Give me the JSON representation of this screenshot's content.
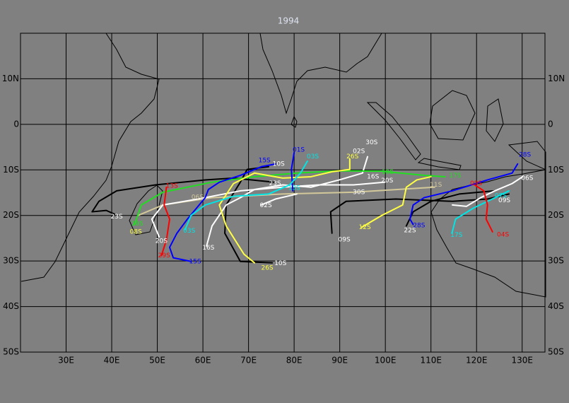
{
  "title": "1994",
  "map": {
    "lonlim": [
      20,
      135
    ],
    "latlim": [
      -50,
      20
    ],
    "lon_ticks": [
      {
        "value": 30,
        "label": "30E"
      },
      {
        "value": 40,
        "label": "40E"
      },
      {
        "value": 50,
        "label": "50E"
      },
      {
        "value": 60,
        "label": "60E"
      },
      {
        "value": 70,
        "label": "70E"
      },
      {
        "value": 80,
        "label": "80E"
      },
      {
        "value": 90,
        "label": "90E"
      },
      {
        "value": 100,
        "label": "100E"
      },
      {
        "value": 110,
        "label": "110E"
      },
      {
        "value": 120,
        "label": "120E"
      },
      {
        "value": 130,
        "label": "130E"
      }
    ],
    "lat_ticks": [
      {
        "value": 10,
        "label": "10N"
      },
      0,
      {
        "value": -10,
        "label": "10S"
      },
      {
        "value": -20,
        "label": "20S"
      },
      {
        "value": -30,
        "label": "30S"
      },
      {
        "value": -40,
        "label": "40S"
      },
      {
        "value": -50,
        "label": "50S"
      }
    ],
    "tracks": [
      {
        "color": "#000000",
        "lon": [
          75.6,
          66.7,
          60.5,
          49.6,
          41.1,
          37.2,
          35.7,
          38.8,
          40.6
        ],
        "lat": [
          -12.7,
          -11.8,
          -12.2,
          -13.3,
          -14.6,
          -16.9,
          -19.2,
          -18.9,
          -19.7
        ]
      },
      {
        "color": "#000000",
        "lon": [
          74.4,
          69.7,
          68.2,
          65.1,
          64.8,
          68.2,
          75.2
        ],
        "lat": [
          -9.3,
          -9.9,
          -12.7,
          -17.7,
          -23.9,
          -30.1,
          -30.4
        ]
      },
      {
        "color": "#000000",
        "lon": [
          88.3,
          88.0,
          91.4,
          102.3,
          114.7,
          122.4,
          127.1
        ],
        "lat": [
          -23.9,
          -19.2,
          -16.9,
          -16.4,
          -16.9,
          -16.4,
          -15.3
        ]
      },
      {
        "color": "#000000",
        "lon": [
          104.6,
          106.1,
          110.0,
          116.2,
          124.0
        ],
        "lat": [
          -22.3,
          -19.2,
          -16.9,
          -15.3,
          -14.6
        ]
      },
      {
        "color": "#d2c89a",
        "lon": [
          110.8,
          93.0,
          77.5,
          62.0,
          51.2,
          45.8
        ],
        "lat": [
          -13.8,
          -14.9,
          -15.3,
          -16.1,
          -17.7,
          -20.0
        ]
      },
      {
        "color": "#ffffff",
        "lon": [
          96.1,
          95.0,
          89.9,
          83.7,
          77.5,
          71.3,
          68.2,
          65.1,
          62.0,
          60.8
        ],
        "lat": [
          -7.1,
          -10.7,
          -12.2,
          -13.8,
          -13.3,
          -14.3,
          -16.1,
          -17.7,
          -22.3,
          -26.7
        ]
      },
      {
        "color": "#ffffff",
        "lon": [
          99.9,
          93.0,
          85.3,
          77.5,
          68.2,
          58.9,
          51.2,
          48.8,
          50.4
        ],
        "lat": [
          -12.7,
          -13.3,
          -13.3,
          -13.8,
          -14.6,
          -16.4,
          -17.7,
          -20.8,
          -24.7
        ]
      },
      {
        "color": "#ffffff",
        "lon": [
          130.1,
          127.8,
          124.0,
          120.9,
          117.8,
          114.7
        ],
        "lat": [
          -11.5,
          -13.0,
          -14.6,
          -16.1,
          -18.0,
          -17.7
        ]
      },
      {
        "color": "#ffffff",
        "lon": [
          72.8,
          75.9,
          80.6
        ],
        "lat": [
          -17.7,
          -16.4,
          -15.3
        ]
      },
      {
        "color": "#22dd22",
        "lon": [
          45.0,
          46.5,
          51.2,
          62.0,
          71.3,
          80.6,
          89.9,
          99.2,
          108.5,
          113.1
        ],
        "lat": [
          -22.0,
          -17.7,
          -14.9,
          -12.7,
          -11.5,
          -10.7,
          -10.2,
          -10.3,
          -11.2,
          -11.5
        ]
      },
      {
        "color": "#ffff44",
        "lon": [
          92.2,
          92.2,
          88.3,
          83.7,
          77.5,
          71.3,
          66.7,
          63.6,
          65.1,
          69.0,
          71.3
        ],
        "lat": [
          -7.6,
          -9.9,
          -10.4,
          -11.5,
          -11.8,
          -10.7,
          -13.0,
          -17.7,
          -22.3,
          -28.5,
          -30.4
        ]
      },
      {
        "color": "#ffff44",
        "lon": [
          94.8,
          99.2,
          103.8,
          104.6,
          106.9,
          110.0
        ],
        "lat": [
          -22.6,
          -20.0,
          -17.7,
          -13.8,
          -12.2,
          -11.5
        ]
      },
      {
        "color": "#0000ff",
        "lon": [
          75.9,
          72.8,
          68.2,
          63.6,
          61.2,
          60.5,
          56.6,
          54.3,
          52.7,
          53.5,
          57.4
        ],
        "lat": [
          -8.7,
          -9.3,
          -11.2,
          -12.7,
          -14.3,
          -16.1,
          -20.8,
          -23.9,
          -27.0,
          -29.3,
          -30.1
        ]
      },
      {
        "color": "#0000ff",
        "lon": [
          80.0,
          79.4,
          79.7
        ],
        "lat": [
          -6.2,
          -9.9,
          -14.6
        ]
      },
      {
        "color": "#0000ff",
        "lon": [
          129.0,
          127.8,
          122.4,
          114.7,
          108.5,
          106.1,
          105.4,
          106.1
        ],
        "lat": [
          -8.7,
          -10.7,
          -12.2,
          -14.6,
          -16.1,
          -17.7,
          -20.8,
          -22.0
        ]
      },
      {
        "color": "#00e5e5",
        "lon": [
          82.9,
          81.4,
          79.0,
          74.4,
          66.7,
          60.5,
          57.4,
          56.1
        ],
        "lat": [
          -8.1,
          -10.7,
          -13.3,
          -15.3,
          -15.8,
          -17.7,
          -20.0,
          -23.1
        ]
      },
      {
        "color": "#00e5e5",
        "lon": [
          114.6,
          115.4,
          119.3,
          122.4,
          127.1
        ],
        "lat": [
          -23.9,
          -20.8,
          -18.4,
          -16.9,
          -14.6
        ]
      },
      {
        "color": "#ff0000",
        "lon": [
          52.0,
          51.5,
          52.7,
          52.0,
          50.9
        ],
        "lat": [
          -13.8,
          -17.7,
          -20.8,
          -25.4,
          -28.8
        ]
      },
      {
        "color": "#ff0000",
        "lon": [
          119.6,
          121.6,
          122.4,
          122.1,
          123.5
        ],
        "lat": [
          -13.3,
          -14.6,
          -17.7,
          -20.8,
          -23.6
        ]
      }
    ],
    "labels": [
      {
        "text": "01S",
        "color": "#0000ff",
        "lon": 81.0,
        "lat": -5.6
      },
      {
        "text": "03S",
        "color": "#00e5e5",
        "lon": 84.1,
        "lat": -7.1
      },
      {
        "text": "02S",
        "color": "#ffffff",
        "lon": 94.2,
        "lat": -5.9
      },
      {
        "text": "30S",
        "color": "#ffffff",
        "lon": 97.0,
        "lat": -4.0
      },
      {
        "text": "26S",
        "color": "#ffff44",
        "lon": 92.8,
        "lat": -7.1
      },
      {
        "text": "19S",
        "color": "#22dd22",
        "lon": 100.5,
        "lat": -10.5
      },
      {
        "text": "28S",
        "color": "#0000ff",
        "lon": 130.6,
        "lat": -6.7
      },
      {
        "text": "17S",
        "color": "#22dd22",
        "lon": 115.3,
        "lat": -11.3
      },
      {
        "text": "06S",
        "color": "#ffffff",
        "lon": 131.1,
        "lat": -11.8
      },
      {
        "text": "09S",
        "color": "#ff0000",
        "lon": 119.9,
        "lat": -13.0
      },
      {
        "text": "11S",
        "color": "#d2c89a",
        "lon": 111.1,
        "lat": -13.3
      },
      {
        "text": "20S",
        "color": "#ffffff",
        "lon": 100.4,
        "lat": -12.4
      },
      {
        "text": "16S",
        "color": "#ffffff",
        "lon": 97.3,
        "lat": -11.5
      },
      {
        "text": "30S",
        "color": "#ffffff",
        "lon": 94.2,
        "lat": -14.9
      },
      {
        "text": "07S",
        "color": "#00e5e5",
        "lon": 125.3,
        "lat": -15.7
      },
      {
        "text": "09S",
        "color": "#ffffff",
        "lon": 126.1,
        "lat": -16.7
      },
      {
        "text": "12S",
        "color": "#ffff44",
        "lon": 95.5,
        "lat": -22.6
      },
      {
        "text": "09S",
        "color": "#ffffff",
        "lon": 91.0,
        "lat": -25.3
      },
      {
        "text": "28S",
        "color": "#0000ff",
        "lon": 107.4,
        "lat": -22.2
      },
      {
        "text": "22S",
        "color": "#ffffff",
        "lon": 105.4,
        "lat": -23.3
      },
      {
        "text": "17S",
        "color": "#00e5e5",
        "lon": 115.6,
        "lat": -24.3
      },
      {
        "text": "04S",
        "color": "#ff0000",
        "lon": 125.8,
        "lat": -24.2
      },
      {
        "text": "10S",
        "color": "#ffffff",
        "lon": 76.6,
        "lat": -8.7
      },
      {
        "text": "15S",
        "color": "#0000ff",
        "lon": 73.5,
        "lat": -7.9
      },
      {
        "text": "23S",
        "color": "#ffffff",
        "lon": 75.8,
        "lat": -13.0
      },
      {
        "text": "13S",
        "color": "#00e5e5",
        "lon": 80.0,
        "lat": -14.0
      },
      {
        "text": "02S",
        "color": "#ffffff",
        "lon": 73.8,
        "lat": -17.8
      },
      {
        "text": "10S",
        "color": "#ffffff",
        "lon": 77.0,
        "lat": -30.5
      },
      {
        "text": "26S",
        "color": "#ffff44",
        "lon": 74.1,
        "lat": -31.5
      },
      {
        "text": "16S",
        "color": "#ffffff",
        "lon": 61.2,
        "lat": -27.1
      },
      {
        "text": "15S",
        "color": "#0000ff",
        "lon": 58.3,
        "lat": -30.1
      },
      {
        "text": "03S",
        "color": "#00e5e5",
        "lon": 57.0,
        "lat": -23.4
      },
      {
        "text": "20S",
        "color": "#ffffff",
        "lon": 50.9,
        "lat": -25.6
      },
      {
        "text": "29S",
        "color": "#ff0000",
        "lon": 51.5,
        "lat": -28.8
      },
      {
        "text": "08S",
        "color": "#ffff44",
        "lon": 45.3,
        "lat": -23.6
      },
      {
        "text": "19S",
        "color": "#22dd22",
        "lon": 45.6,
        "lat": -21.8
      },
      {
        "text": "13S",
        "color": "#ff0000",
        "lon": 53.2,
        "lat": -13.5
      },
      {
        "text": "23S",
        "color": "#ffffff",
        "lon": 41.1,
        "lat": -20.3
      },
      {
        "text": "06S",
        "color": "#d2c89a",
        "lon": 58.8,
        "lat": -16.0
      }
    ]
  }
}
